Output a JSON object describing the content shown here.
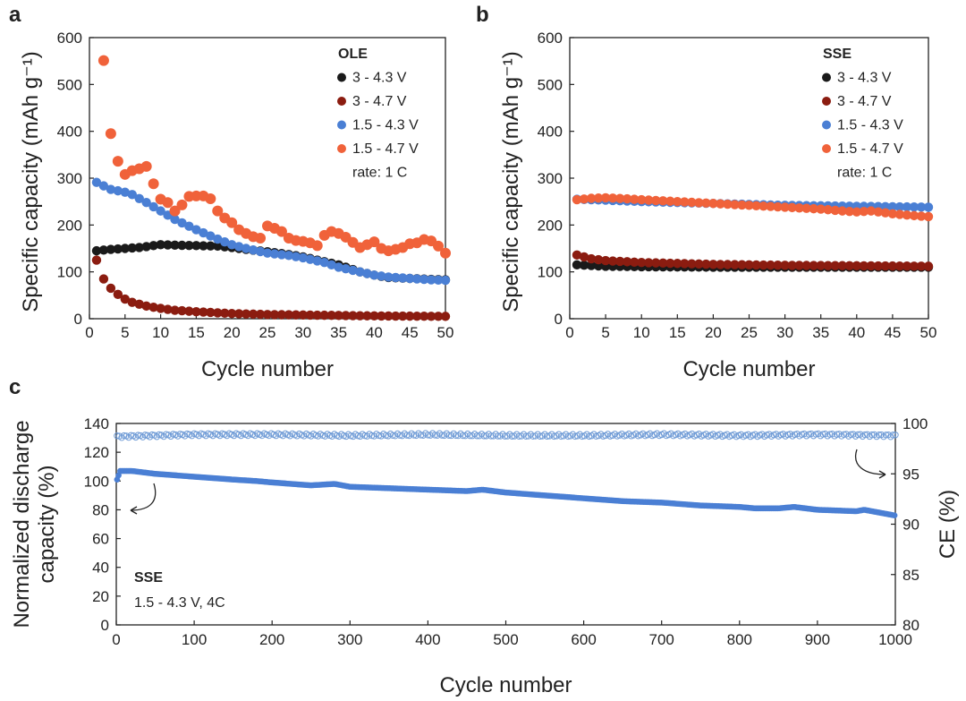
{
  "colors": {
    "black": "#1a1a1a",
    "darkred": "#8b1c10",
    "blue": "#4a7fd4",
    "orange": "#f0623a",
    "ce_blue": "#6f9bd6"
  },
  "chart_data": [
    {
      "id": "a",
      "panel_label": "a",
      "type": "scatter",
      "legend_title": "OLE",
      "legend_note": "rate: 1 C",
      "xlabel": "Cycle number",
      "ylabel": "Specific capacity (mAh g⁻¹)",
      "xlim": [
        0,
        50
      ],
      "ylim": [
        0,
        600
      ],
      "xticks": [
        0,
        5,
        10,
        15,
        20,
        25,
        30,
        35,
        40,
        45,
        50
      ],
      "yticks": [
        0,
        100,
        200,
        300,
        400,
        500,
        600
      ],
      "series": [
        {
          "name": "3 - 4.3 V",
          "color": "#1a1a1a",
          "x": [
            1,
            3,
            5,
            7,
            9,
            10,
            12,
            15,
            18,
            20,
            22,
            25,
            28,
            30,
            32,
            35,
            38,
            40,
            42,
            45,
            48,
            50
          ],
          "y": [
            145,
            148,
            150,
            152,
            156,
            158,
            157,
            156,
            155,
            152,
            148,
            143,
            137,
            132,
            125,
            115,
            100,
            93,
            88,
            86,
            84,
            83
          ]
        },
        {
          "name": "3 - 4.7 V",
          "color": "#8b1c10",
          "x": [
            1,
            2,
            3,
            4,
            5,
            6,
            8,
            10,
            12,
            15,
            20,
            25,
            30,
            35,
            40,
            45,
            50
          ],
          "y": [
            125,
            85,
            65,
            52,
            42,
            35,
            27,
            22,
            18,
            15,
            11,
            9,
            8,
            7,
            6,
            5.5,
            5
          ]
        },
        {
          "name": "1.5 - 4.3 V",
          "color": "#4a7fd4",
          "x": [
            1,
            3,
            5,
            6,
            8,
            10,
            12,
            15,
            18,
            20,
            22,
            25,
            28,
            30,
            33,
            35,
            38,
            40,
            42,
            45,
            48,
            50
          ],
          "y": [
            291,
            276,
            270,
            265,
            248,
            230,
            212,
            190,
            170,
            158,
            150,
            140,
            135,
            130,
            120,
            110,
            100,
            93,
            89,
            86,
            83,
            82
          ]
        },
        {
          "name": "1.5 - 4.7 V",
          "color": "#f0623a",
          "x": [
            2,
            3,
            4,
            5,
            6,
            7,
            8,
            9,
            10,
            11,
            12,
            13,
            14,
            15,
            16,
            17,
            18,
            19,
            20,
            21,
            22,
            23,
            24,
            25,
            26,
            27,
            28,
            29,
            30,
            31,
            32,
            33,
            34,
            35,
            36,
            37,
            38,
            39,
            40,
            41,
            42,
            43,
            44,
            45,
            46,
            47,
            48,
            49,
            50
          ],
          "y": [
            551,
            395,
            336,
            308,
            316,
            320,
            325,
            288,
            255,
            248,
            230,
            243,
            261,
            262,
            262,
            256,
            230,
            215,
            205,
            190,
            182,
            175,
            172,
            198,
            193,
            186,
            172,
            167,
            165,
            162,
            156,
            178,
            186,
            182,
            174,
            163,
            152,
            158,
            164,
            150,
            145,
            148,
            152,
            160,
            162,
            169,
            166,
            155,
            140
          ]
        }
      ]
    },
    {
      "id": "b",
      "panel_label": "b",
      "type": "scatter",
      "legend_title": "SSE",
      "legend_note": "rate: 1 C",
      "xlabel": "Cycle number",
      "ylabel": "Specific capacity (mAh g⁻¹)",
      "xlim": [
        0,
        50
      ],
      "ylim": [
        0,
        600
      ],
      "xticks": [
        0,
        5,
        10,
        15,
        20,
        25,
        30,
        35,
        40,
        45,
        50
      ],
      "yticks": [
        0,
        100,
        200,
        300,
        400,
        500,
        600
      ],
      "series": [
        {
          "name": "3 - 4.3 V",
          "color": "#1a1a1a",
          "x": [
            1,
            5,
            10,
            20,
            30,
            40,
            50
          ],
          "y": [
            115,
            112,
            111,
            110,
            110,
            110,
            110
          ]
        },
        {
          "name": "3 - 4.7 V",
          "color": "#8b1c10",
          "x": [
            1,
            3,
            5,
            10,
            20,
            30,
            40,
            50
          ],
          "y": [
            136,
            128,
            124,
            120,
            116,
            114,
            113,
            112
          ]
        },
        {
          "name": "1.5 - 4.3 V",
          "color": "#4a7fd4",
          "x": [
            1,
            5,
            10,
            20,
            30,
            40,
            50
          ],
          "y": [
            255,
            253,
            250,
            246,
            242,
            240,
            238
          ]
        },
        {
          "name": "1.5 - 4.7 V",
          "color": "#f0623a",
          "x": [
            1,
            3,
            5,
            8,
            10,
            15,
            20,
            25,
            30,
            35,
            38,
            40,
            42,
            45,
            48,
            50
          ],
          "y": [
            254,
            257,
            258,
            256,
            254,
            250,
            246,
            242,
            238,
            234,
            230,
            228,
            230,
            224,
            220,
            218
          ]
        }
      ]
    },
    {
      "id": "c",
      "panel_label": "c",
      "type": "scatter",
      "legend_title": "SSE",
      "legend_note": "1.5 - 4.3 V, 4C",
      "xlabel": "Cycle number",
      "ylabel_lines": [
        "Normalized discharge",
        "capacity (%)"
      ],
      "y2label": "CE (%)",
      "xlim": [
        0,
        1000
      ],
      "ylim": [
        0,
        140
      ],
      "y2lim": [
        80,
        100
      ],
      "xticks": [
        0,
        100,
        200,
        300,
        400,
        500,
        600,
        700,
        800,
        900,
        1000
      ],
      "yticks": [
        0,
        20,
        40,
        60,
        80,
        100,
        120,
        140
      ],
      "y2ticks": [
        80,
        85,
        90,
        95,
        100
      ],
      "series": [
        {
          "name": "Normalized discharge capacity",
          "axis": "left",
          "color": "#4a7fd4",
          "x": [
            1,
            5,
            20,
            50,
            100,
            150,
            180,
            200,
            250,
            280,
            300,
            350,
            400,
            450,
            470,
            500,
            550,
            600,
            650,
            700,
            750,
            800,
            820,
            850,
            870,
            900,
            950,
            960,
            1000
          ],
          "y": [
            101,
            107,
            107,
            105,
            103,
            101,
            100,
            99,
            97,
            98,
            96,
            95,
            94,
            93,
            94,
            92,
            90,
            88,
            86,
            85,
            83,
            82,
            81,
            81,
            82,
            80,
            79,
            80,
            76
          ]
        },
        {
          "name": "CE",
          "axis": "right",
          "color": "#6f9bd6",
          "x": [
            0,
            100,
            200,
            300,
            400,
            500,
            600,
            700,
            800,
            900,
            1000
          ],
          "y": [
            98.7,
            98.9,
            98.9,
            98.8,
            98.9,
            98.8,
            98.8,
            98.9,
            98.8,
            98.9,
            98.8
          ]
        }
      ]
    }
  ]
}
